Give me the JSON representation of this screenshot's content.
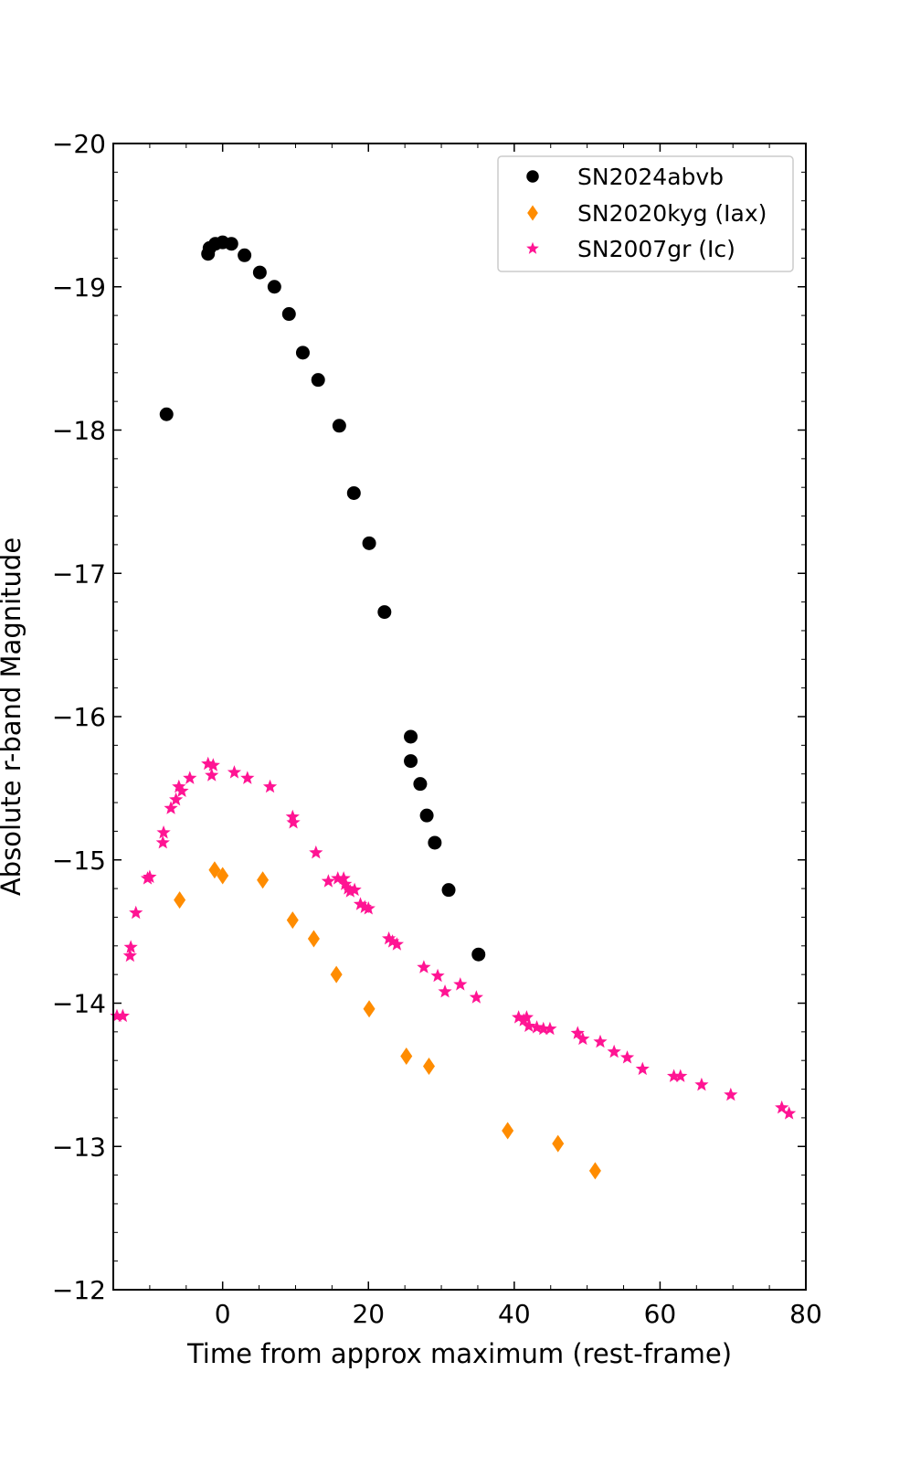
{
  "chart_data": {
    "type": "scatter",
    "title": "",
    "xlabel": "Time from approx maximum (rest-frame)",
    "ylabel": "Absolute r-band Magnitude",
    "xlim": [
      -15,
      80
    ],
    "ylim": [
      -12,
      -20
    ],
    "y_inverted": true,
    "grid": false,
    "legend_position": "top-right",
    "x_ticks": [
      0,
      20,
      40,
      60,
      80
    ],
    "x_tick_labels": [
      "0",
      "20",
      "40",
      "60",
      "80"
    ],
    "y_ticks": [
      -20,
      -19,
      -18,
      -17,
      -16,
      -15,
      -14,
      -13,
      -12
    ],
    "y_tick_labels": [
      "−20",
      "−19",
      "−18",
      "−17",
      "−16",
      "−15",
      "−14",
      "−13",
      "−12"
    ],
    "series": [
      {
        "name": "SN2024abvb",
        "marker": "circle",
        "color": "#000000",
        "points": [
          [
            -7.7,
            -18.11
          ],
          [
            -2.0,
            -19.23
          ],
          [
            -1.8,
            -19.27
          ],
          [
            -1.0,
            -19.3
          ],
          [
            0.0,
            -19.31
          ],
          [
            1.2,
            -19.3
          ],
          [
            3.0,
            -19.22
          ],
          [
            5.1,
            -19.1
          ],
          [
            7.1,
            -19.0
          ],
          [
            9.1,
            -18.81
          ],
          [
            11.0,
            -18.54
          ],
          [
            13.1,
            -18.35
          ],
          [
            16.0,
            -18.03
          ],
          [
            18.0,
            -17.56
          ],
          [
            20.1,
            -17.21
          ],
          [
            22.2,
            -16.73
          ],
          [
            25.8,
            -15.86
          ],
          [
            25.8,
            -15.69
          ],
          [
            27.1,
            -15.53
          ],
          [
            28.0,
            -15.31
          ],
          [
            29.1,
            -15.12
          ],
          [
            31.0,
            -14.79
          ],
          [
            35.1,
            -14.34
          ]
        ]
      },
      {
        "name": "SN2020kyg (Iax)",
        "marker": "diamond",
        "color": "#ff8c00",
        "points": [
          [
            -5.9,
            -14.72
          ],
          [
            -1.1,
            -14.93
          ],
          [
            0.0,
            -14.89
          ],
          [
            5.5,
            -14.86
          ],
          [
            9.6,
            -14.58
          ],
          [
            12.5,
            -14.45
          ],
          [
            15.6,
            -14.2
          ],
          [
            20.1,
            -13.96
          ],
          [
            25.2,
            -13.63
          ],
          [
            28.3,
            -13.56
          ],
          [
            39.1,
            -13.11
          ],
          [
            46.0,
            -13.02
          ],
          [
            51.1,
            -12.83
          ]
        ]
      },
      {
        "name": "SN2007gr (Ic)",
        "marker": "star",
        "color": "#ff1493",
        "points": [
          [
            -14.5,
            -13.91
          ],
          [
            -13.7,
            -13.91
          ],
          [
            -12.7,
            -14.33
          ],
          [
            -12.6,
            -14.39
          ],
          [
            -11.9,
            -14.63
          ],
          [
            -10.3,
            -14.87
          ],
          [
            -10.0,
            -14.88
          ],
          [
            -8.2,
            -15.12
          ],
          [
            -8.1,
            -15.19
          ],
          [
            -7.1,
            -15.36
          ],
          [
            -6.4,
            -15.42
          ],
          [
            -6.0,
            -15.51
          ],
          [
            -5.6,
            -15.48
          ],
          [
            -4.5,
            -15.57
          ],
          [
            -2.0,
            -15.67
          ],
          [
            -1.3,
            -15.66
          ],
          [
            -1.5,
            -15.59
          ],
          [
            1.6,
            -15.61
          ],
          [
            3.4,
            -15.57
          ],
          [
            6.5,
            -15.51
          ],
          [
            9.6,
            -15.3
          ],
          [
            9.7,
            -15.26
          ],
          [
            12.8,
            -15.05
          ],
          [
            14.5,
            -14.85
          ],
          [
            15.8,
            -14.87
          ],
          [
            16.6,
            -14.87
          ],
          [
            16.8,
            -14.83
          ],
          [
            17.2,
            -14.8
          ],
          [
            17.5,
            -14.78
          ],
          [
            18.1,
            -14.79
          ],
          [
            18.9,
            -14.69
          ],
          [
            19.5,
            -14.67
          ],
          [
            20.0,
            -14.66
          ],
          [
            22.8,
            -14.45
          ],
          [
            23.3,
            -14.43
          ],
          [
            23.9,
            -14.41
          ],
          [
            27.6,
            -14.25
          ],
          [
            29.5,
            -14.19
          ],
          [
            30.5,
            -14.08
          ],
          [
            32.6,
            -14.13
          ],
          [
            34.8,
            -14.04
          ],
          [
            40.6,
            -13.9
          ],
          [
            41.3,
            -13.88
          ],
          [
            41.7,
            -13.9
          ],
          [
            42.0,
            -13.84
          ],
          [
            43.1,
            -13.83
          ],
          [
            44.0,
            -13.82
          ],
          [
            44.9,
            -13.82
          ],
          [
            48.7,
            -13.79
          ],
          [
            49.4,
            -13.75
          ],
          [
            51.8,
            -13.73
          ],
          [
            53.7,
            -13.66
          ],
          [
            55.5,
            -13.62
          ],
          [
            57.6,
            -13.54
          ],
          [
            61.9,
            -13.49
          ],
          [
            62.8,
            -13.49
          ],
          [
            65.7,
            -13.43
          ],
          [
            69.7,
            -13.36
          ],
          [
            76.7,
            -13.27
          ],
          [
            77.7,
            -13.23
          ]
        ]
      }
    ]
  }
}
